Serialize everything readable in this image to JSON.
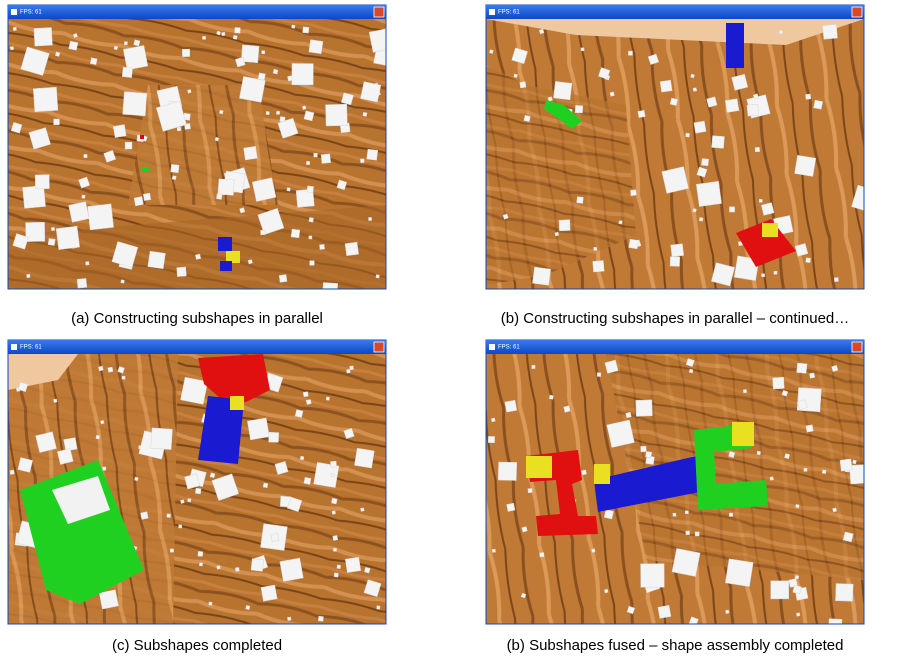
{
  "panels": [
    {
      "window_title": "FPS: 61",
      "caption": "(a) Constructing subshapes in parallel"
    },
    {
      "window_title": "FPS: 61",
      "caption": "(b) Constructing subshapes in parallel – continued…"
    },
    {
      "window_title": "FPS: 61",
      "caption": "(c) Subshapes completed"
    },
    {
      "window_title": "FPS: 61",
      "caption": "(b) Subshapes fused – shape assembly completed"
    }
  ]
}
